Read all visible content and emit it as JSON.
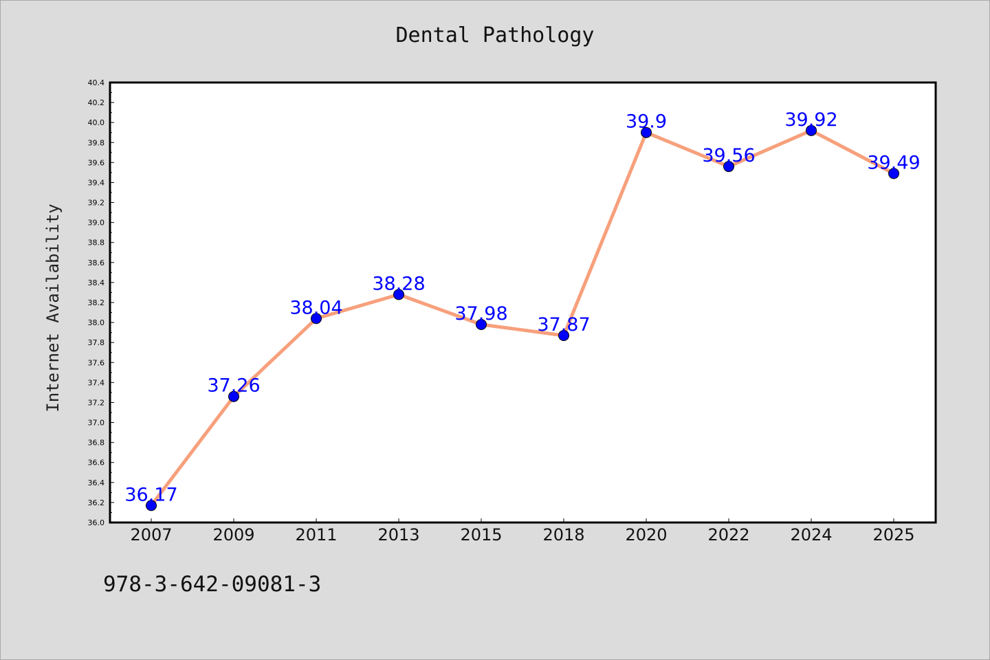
{
  "header": {
    "title": "Dental Pathology"
  },
  "footer": {
    "code": "978-3-642-09081-3"
  },
  "colors": {
    "line": "#f7a07c",
    "marker": "#0000ff",
    "label": "#0000ff",
    "background": "#dcdcdc",
    "plot": "#ffffff"
  },
  "chart_data": {
    "type": "line",
    "title": "Dental Pathology",
    "xlabel": "",
    "ylabel": "Internet Availability",
    "categories": [
      "2007",
      "2009",
      "2011",
      "2013",
      "2015",
      "2018",
      "2020",
      "2022",
      "2024",
      "2025"
    ],
    "values": [
      36.17,
      37.26,
      38.04,
      38.28,
      37.98,
      37.87,
      39.9,
      39.56,
      39.92,
      39.49
    ],
    "data_labels": [
      "36.17",
      "37.26",
      "38.04",
      "38.28",
      "37.98",
      "37.87",
      "39.9",
      "39.56",
      "39.92",
      "39.49"
    ],
    "ylim": [
      36.0,
      40.4
    ],
    "yticks": [
      "36.0",
      "36.2",
      "36.4",
      "36.6",
      "36.8",
      "37.0",
      "37.2",
      "37.4",
      "37.6",
      "37.8",
      "38.0",
      "38.2",
      "38.4",
      "38.6",
      "38.8",
      "39.0",
      "39.2",
      "39.4",
      "39.6",
      "39.8",
      "40.0",
      "40.2",
      "40.4"
    ],
    "grid": false,
    "legend": "none"
  }
}
